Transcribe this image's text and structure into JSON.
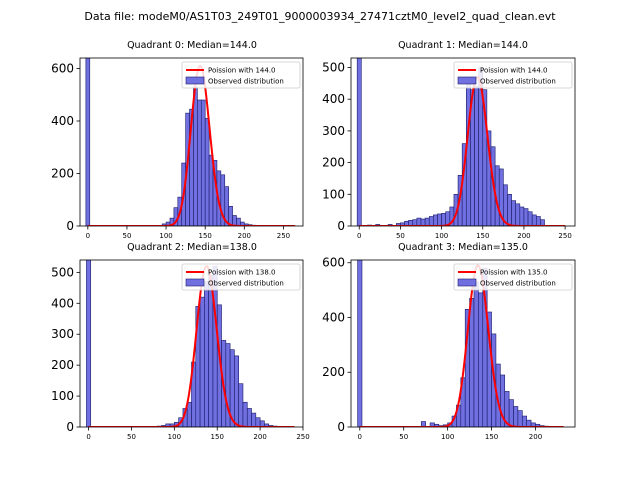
{
  "figure": {
    "suptitle": "Data file: modeM0/AS1T03_249T01_9000003934_27471cztM0_level2_quad_clean.evt"
  },
  "colors": {
    "bar_fill": "#7070e0",
    "bar_edge": "#1a1a6a",
    "line": "#ff0000"
  },
  "chart_data": [
    {
      "type": "bar",
      "title": "Quadrant 0: Median=144.0",
      "xlim": [
        -10,
        275
      ],
      "ylim": [
        0,
        640
      ],
      "xticks": [
        0,
        50,
        100,
        150,
        200,
        250
      ],
      "yticks": [
        0,
        200,
        400,
        600
      ],
      "bin_width": 5,
      "zero_bin": {
        "x": 0,
        "value": 640
      },
      "bins": [
        [
          90,
          2
        ],
        [
          95,
          8
        ],
        [
          100,
          15
        ],
        [
          105,
          30
        ],
        [
          110,
          70
        ],
        [
          115,
          110
        ],
        [
          120,
          240
        ],
        [
          125,
          430
        ],
        [
          130,
          445
        ],
        [
          135,
          530
        ],
        [
          140,
          480
        ],
        [
          145,
          480
        ],
        [
          150,
          410
        ],
        [
          155,
          270
        ],
        [
          160,
          250
        ],
        [
          165,
          210
        ],
        [
          170,
          195
        ],
        [
          175,
          150
        ],
        [
          180,
          75
        ],
        [
          185,
          40
        ],
        [
          190,
          30
        ],
        [
          195,
          15
        ],
        [
          200,
          8
        ],
        [
          205,
          5
        ],
        [
          210,
          3
        ],
        [
          215,
          2
        ],
        [
          220,
          1
        ]
      ],
      "poisson": {
        "mu": 144.0,
        "peak": 610,
        "x_range": [
          0,
          265
        ]
      },
      "legend": [
        "Poission with 144.0",
        "Observed distribution"
      ]
    },
    {
      "type": "bar",
      "title": "Quadrant 1: Median=144.0",
      "xlim": [
        -10,
        262
      ],
      "ylim": [
        0,
        530
      ],
      "xticks": [
        0,
        50,
        100,
        150,
        200,
        250
      ],
      "yticks": [
        0,
        100,
        200,
        300,
        400,
        500
      ],
      "bin_width": 5,
      "zero_bin": {
        "x": 0,
        "value": 530
      },
      "bins": [
        [
          10,
          3
        ],
        [
          20,
          5
        ],
        [
          35,
          5
        ],
        [
          45,
          8
        ],
        [
          50,
          10
        ],
        [
          55,
          15
        ],
        [
          60,
          18
        ],
        [
          65,
          20
        ],
        [
          70,
          25
        ],
        [
          75,
          22
        ],
        [
          80,
          25
        ],
        [
          85,
          30
        ],
        [
          90,
          35
        ],
        [
          95,
          38
        ],
        [
          100,
          40
        ],
        [
          105,
          45
        ],
        [
          110,
          60
        ],
        [
          115,
          100
        ],
        [
          120,
          160
        ],
        [
          125,
          260
        ],
        [
          130,
          470
        ],
        [
          135,
          430
        ],
        [
          140,
          440
        ],
        [
          145,
          500
        ],
        [
          150,
          430
        ],
        [
          155,
          300
        ],
        [
          160,
          250
        ],
        [
          165,
          190
        ],
        [
          170,
          180
        ],
        [
          175,
          130
        ],
        [
          180,
          100
        ],
        [
          185,
          80
        ],
        [
          190,
          70
        ],
        [
          195,
          60
        ],
        [
          200,
          55
        ],
        [
          205,
          45
        ],
        [
          210,
          35
        ],
        [
          215,
          30
        ],
        [
          220,
          20
        ]
      ],
      "poisson": {
        "mu": 144.0,
        "peak": 470,
        "x_range": [
          0,
          250
        ]
      },
      "legend": [
        "Poission with 144.0",
        "Observed distribution"
      ]
    },
    {
      "type": "bar",
      "title": "Quadrant 2: Median=138.0",
      "xlim": [
        -10,
        250
      ],
      "ylim": [
        0,
        540
      ],
      "xticks": [
        0,
        50,
        100,
        150,
        200,
        250
      ],
      "yticks": [
        0,
        100,
        200,
        300,
        400,
        500
      ],
      "bin_width": 5,
      "zero_bin": {
        "x": 0,
        "value": 540
      },
      "bins": [
        [
          80,
          3
        ],
        [
          85,
          5
        ],
        [
          90,
          10
        ],
        [
          95,
          10
        ],
        [
          100,
          15
        ],
        [
          105,
          30
        ],
        [
          110,
          60
        ],
        [
          115,
          80
        ],
        [
          120,
          210
        ],
        [
          125,
          390
        ],
        [
          130,
          420
        ],
        [
          135,
          470
        ],
        [
          140,
          490
        ],
        [
          145,
          520
        ],
        [
          150,
          395
        ],
        [
          155,
          280
        ],
        [
          160,
          270
        ],
        [
          165,
          250
        ],
        [
          170,
          230
        ],
        [
          175,
          140
        ],
        [
          180,
          80
        ],
        [
          185,
          60
        ],
        [
          190,
          45
        ],
        [
          195,
          30
        ],
        [
          200,
          20
        ],
        [
          205,
          10
        ],
        [
          210,
          5
        ],
        [
          215,
          3
        ]
      ],
      "poisson": {
        "mu": 138.0,
        "peak": 520,
        "x_range": [
          0,
          240
        ]
      },
      "legend": [
        "Poission with 138.0",
        "Observed distribution"
      ]
    },
    {
      "type": "bar",
      "title": "Quadrant 3: Median=135.0",
      "xlim": [
        -10,
        245
      ],
      "ylim": [
        0,
        610
      ],
      "xticks": [
        0,
        50,
        100,
        150,
        200
      ],
      "yticks": [
        0,
        200,
        400,
        600
      ],
      "bin_width": 5,
      "zero_bin": {
        "x": 0,
        "value": 610
      },
      "bins": [
        [
          70,
          20
        ],
        [
          80,
          15
        ],
        [
          85,
          10
        ],
        [
          90,
          5
        ],
        [
          95,
          8
        ],
        [
          100,
          15
        ],
        [
          105,
          40
        ],
        [
          110,
          80
        ],
        [
          115,
          180
        ],
        [
          120,
          430
        ],
        [
          125,
          470
        ],
        [
          130,
          530
        ],
        [
          135,
          490
        ],
        [
          140,
          580
        ],
        [
          145,
          420
        ],
        [
          150,
          340
        ],
        [
          155,
          230
        ],
        [
          160,
          190
        ],
        [
          165,
          130
        ],
        [
          170,
          100
        ],
        [
          175,
          75
        ],
        [
          180,
          60
        ],
        [
          185,
          40
        ],
        [
          190,
          25
        ],
        [
          195,
          15
        ],
        [
          200,
          10
        ],
        [
          205,
          5
        ],
        [
          210,
          3
        ]
      ],
      "poisson": {
        "mu": 135.0,
        "peak": 590,
        "x_range": [
          0,
          232
        ]
      },
      "legend": [
        "Poission with 135.0",
        "Observed distribution"
      ]
    }
  ]
}
